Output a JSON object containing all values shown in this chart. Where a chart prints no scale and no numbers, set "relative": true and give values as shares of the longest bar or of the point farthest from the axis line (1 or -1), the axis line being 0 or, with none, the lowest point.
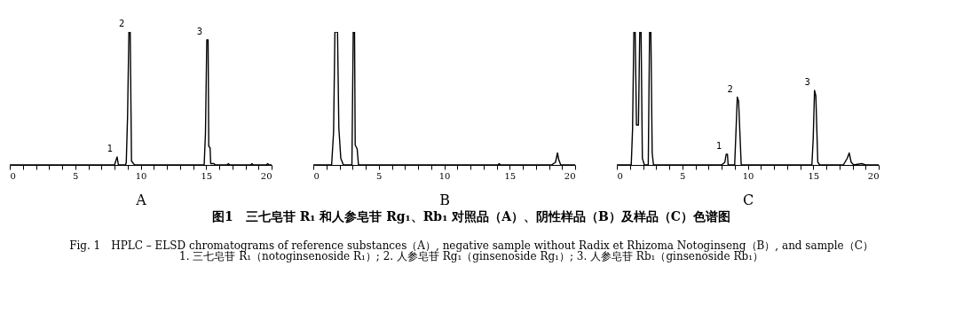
{
  "chart_data": [
    {
      "type": "line",
      "relative": true,
      "xlabel": "A",
      "tick_labels": "x",
      "xlim": [
        0,
        20
      ],
      "xticks": [
        0,
        {
          "value": 1,
          "label": null
        },
        {
          "value": 2,
          "label": null
        },
        {
          "value": 3,
          "label": null
        },
        {
          "value": 4,
          "label": null
        },
        5,
        {
          "value": 6,
          "label": null
        },
        {
          "value": 7,
          "label": null
        },
        {
          "value": 8,
          "label": null
        },
        {
          "value": 9,
          "label": null
        },
        10,
        {
          "value": 11,
          "label": null
        },
        {
          "value": 12,
          "label": null
        },
        {
          "value": 13,
          "label": null
        },
        {
          "value": 14,
          "label": null
        },
        15,
        {
          "value": 16,
          "label": null
        },
        {
          "value": 17,
          "label": null
        },
        {
          "value": 18,
          "label": null
        },
        {
          "value": 19,
          "label": null
        },
        20
      ],
      "x": [
        0,
        8.0,
        8.2,
        8.3,
        8.85,
        8.9,
        9.0,
        9.1,
        9.2,
        9.3,
        9.45,
        9.55,
        14.85,
        14.95,
        15.05,
        15.15,
        15.2,
        15.3,
        15.35,
        15.6,
        15.7,
        16.6,
        16.7,
        16.8,
        18.4,
        18.5,
        18.6,
        19.6,
        19.7,
        19.8,
        20
      ],
      "series": [
        {
          "color": "#000000",
          "values": [
            0,
            0,
            0.06,
            0,
            0,
            0.02,
            0.37,
            1.0,
            1.0,
            0.03,
            0.01,
            0,
            0,
            0.24,
            0.94,
            0.94,
            0.14,
            0.13,
            0.01,
            0.01,
            0,
            0,
            0.01,
            0,
            0,
            0.01,
            0,
            0,
            0.01,
            0,
            0
          ]
        }
      ],
      "annotations": [
        {
          "text": "1",
          "x": 8.2,
          "y": 0.06
        },
        {
          "text": "2",
          "x": 9.1,
          "y": 1.0
        },
        {
          "text": "3",
          "x": 15.05,
          "y": 0.94
        }
      ]
    },
    {
      "type": "line",
      "relative": true,
      "xlabel": "B",
      "tick_labels": "x",
      "xlim": [
        0,
        20
      ],
      "xticks": [
        0,
        {
          "value": 1,
          "label": null
        },
        {
          "value": 2,
          "label": null
        },
        {
          "value": 3,
          "label": null
        },
        {
          "value": 4,
          "label": null
        },
        5,
        {
          "value": 6,
          "label": null
        },
        {
          "value": 7,
          "label": null
        },
        {
          "value": 8,
          "label": null
        },
        {
          "value": 9,
          "label": null
        },
        10,
        {
          "value": 11,
          "label": null
        },
        {
          "value": 12,
          "label": null
        },
        {
          "value": 13,
          "label": null
        },
        {
          "value": 14,
          "label": null
        },
        15,
        {
          "value": 16,
          "label": null
        },
        {
          "value": 17,
          "label": null
        },
        {
          "value": 18,
          "label": null
        },
        {
          "value": 19,
          "label": null
        },
        20
      ],
      "x": [
        0,
        1.4,
        1.55,
        1.65,
        1.85,
        1.95,
        2.1,
        2.3,
        2.95,
        3.05,
        3.15,
        3.2,
        3.35,
        3.45,
        14.1,
        14.2,
        14.3,
        18.2,
        18.5,
        18.65,
        18.75,
        18.9,
        20
      ],
      "series": [
        {
          "color": "#000000",
          "values": [
            0,
            0,
            0.25,
            1,
            1,
            0.28,
            0.05,
            0,
            0,
            1,
            1,
            0.15,
            0.12,
            0,
            0,
            0.01,
            0,
            0,
            0.02,
            0.09,
            0.04,
            0,
            0
          ]
        }
      ]
    },
    {
      "type": "line",
      "relative": true,
      "xlabel": "C",
      "tick_labels": "x",
      "xlim": [
        0,
        20
      ],
      "xticks": [
        0,
        {
          "value": 1,
          "label": null
        },
        {
          "value": 2,
          "label": null
        },
        {
          "value": 3,
          "label": null
        },
        {
          "value": 4,
          "label": null
        },
        5,
        {
          "value": 6,
          "label": null
        },
        {
          "value": 7,
          "label": null
        },
        {
          "value": 8,
          "label": null
        },
        {
          "value": 9,
          "label": null
        },
        10,
        {
          "value": 11,
          "label": null
        },
        {
          "value": 12,
          "label": null
        },
        {
          "value": 13,
          "label": null
        },
        {
          "value": 14,
          "label": null
        },
        15,
        {
          "value": 16,
          "label": null
        },
        {
          "value": 17,
          "label": null
        },
        {
          "value": 18,
          "label": null
        },
        {
          "value": 19,
          "label": null
        },
        20
      ],
      "x": [
        0,
        1.1,
        1.2,
        1.3,
        1.4,
        1.5,
        1.65,
        1.75,
        1.85,
        1.95,
        2.1,
        2.4,
        2.5,
        2.6,
        2.7,
        2.8,
        8.0,
        8.25,
        8.35,
        8.45,
        8.5,
        9.0,
        9.1,
        9.2,
        9.3,
        9.4,
        9.5,
        14.9,
        15.0,
        15.1,
        15.2,
        15.35,
        15.5,
        17.3,
        17.6,
        17.75,
        17.9,
        18.1,
        18.7,
        19.0,
        20
      ],
      "series": [
        {
          "color": "#000000",
          "values": [
            0,
            0,
            0.27,
            1,
            1,
            0.3,
            0.3,
            1,
            1,
            0.05,
            0,
            0,
            1,
            1,
            0.09,
            0,
            0,
            0.02,
            0.08,
            0.08,
            0,
            0,
            0.25,
            0.51,
            0.48,
            0.24,
            0,
            0,
            0.2,
            0.56,
            0.52,
            0.02,
            0,
            0,
            0.05,
            0.09,
            0.02,
            0,
            0.01,
            0,
            0
          ]
        }
      ],
      "annotations": [
        {
          "text": "1",
          "x": 8.35,
          "y": 0.08
        },
        {
          "text": "2",
          "x": 9.2,
          "y": 0.51
        },
        {
          "text": "3",
          "x": 15.1,
          "y": 0.56
        }
      ]
    },
    {
      "type": "other",
      "title": "图1　三七皂苷 R₁ 和人参皂苷 Rg₁、Rb₁ 对照品（A）、阴性样品（B）及样品（C）色谱图",
      "annotations": [
        "Fig. 1　HPLC – ELSD chromatograms of reference substances（A）, negative sample without Radix et Rhizoma Notoginseng（B）, and sample（C）",
        "1. 三七皂苷 R₁（notoginsenoside R₁）; 2. 人参皂苷 Rg₁（ginsenoside Rg₁）; 3. 人参皂苷 Rb₁（ginsenoside Rb₁）"
      ]
    }
  ]
}
